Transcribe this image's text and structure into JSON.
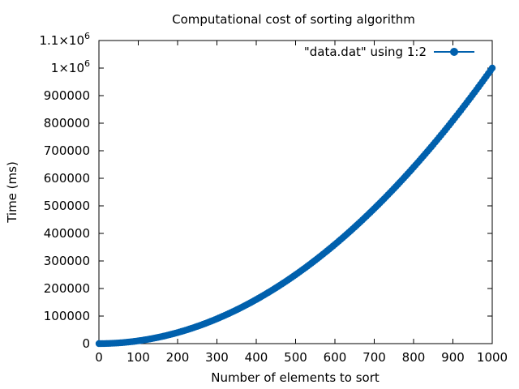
{
  "chart_data": {
    "type": "line",
    "title": "Computational cost of sorting algorithm",
    "xlabel": "Number of elements to sort",
    "ylabel": "Time (ms)",
    "xlim": [
      0,
      1000
    ],
    "ylim": [
      0,
      1100000
    ],
    "x_ticks": [
      0,
      100,
      200,
      300,
      400,
      500,
      600,
      700,
      800,
      900,
      1000
    ],
    "x_tick_labels": [
      "0",
      "100",
      "200",
      "300",
      "400",
      "500",
      "600",
      "700",
      "800",
      "900",
      "1000"
    ],
    "y_ticks": [
      0,
      100000,
      200000,
      300000,
      400000,
      500000,
      600000,
      700000,
      800000,
      900000,
      1000000,
      1100000
    ],
    "y_tick_labels": [
      {
        "text": "0"
      },
      {
        "text": "100000"
      },
      {
        "text": "200000"
      },
      {
        "text": "300000"
      },
      {
        "text": "400000"
      },
      {
        "text": "500000"
      },
      {
        "text": "600000"
      },
      {
        "text": "700000"
      },
      {
        "text": "800000"
      },
      {
        "text": "900000"
      },
      {
        "text": "1×10",
        "sup": "6"
      },
      {
        "text": "1.1×10",
        "sup": "6"
      }
    ],
    "grid": false,
    "legend_position": "top-right",
    "series": [
      {
        "name": "\"data.dat\" using 1:2",
        "color": "#0060ad",
        "marker": "circle",
        "x_start": 0,
        "x_end": 1000,
        "x_step": 5,
        "formula": "y = x^2",
        "x": [
          0,
          100,
          200,
          300,
          400,
          500,
          600,
          700,
          800,
          900,
          1000
        ],
        "y": [
          0,
          10000,
          40000,
          90000,
          160000,
          250000,
          360000,
          490000,
          640000,
          810000,
          1000000
        ]
      }
    ]
  }
}
